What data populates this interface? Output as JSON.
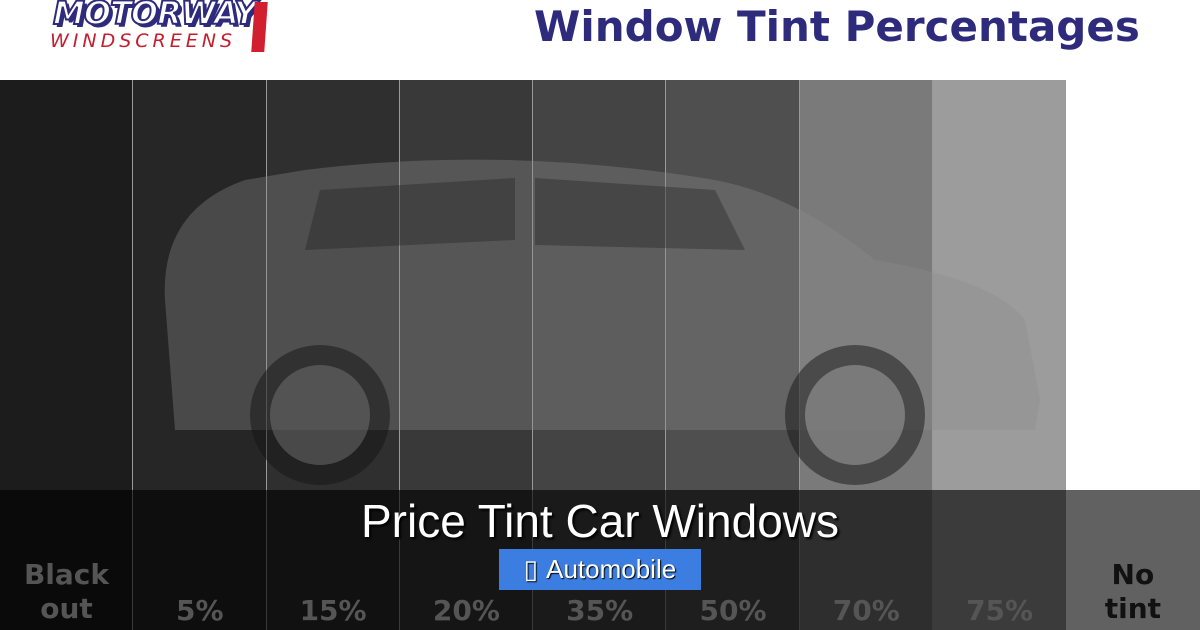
{
  "logo": {
    "line1": "MOTORWAY",
    "line2": "WINDSCREENS"
  },
  "header": {
    "title": "Window Tint Percentages"
  },
  "tint_columns": [
    {
      "label": "Black out",
      "color": "#1c1c1c"
    },
    {
      "label": "5%",
      "color": "#262626"
    },
    {
      "label": "15%",
      "color": "#2f2f2f"
    },
    {
      "label": "20%",
      "color": "#393939"
    },
    {
      "label": "35%",
      "color": "#444444"
    },
    {
      "label": "50%",
      "color": "#4f4f4f"
    },
    {
      "label": "70%",
      "color": "#7a7a7a"
    },
    {
      "label": "75%",
      "color": "#9c9c9c"
    },
    {
      "label": "No tint",
      "color": "#ffffff"
    }
  ],
  "post": {
    "title": "Price Tint Car Windows",
    "category": "Automobile",
    "category_icon": "folder-icon",
    "category_color": "#3b7de0"
  }
}
